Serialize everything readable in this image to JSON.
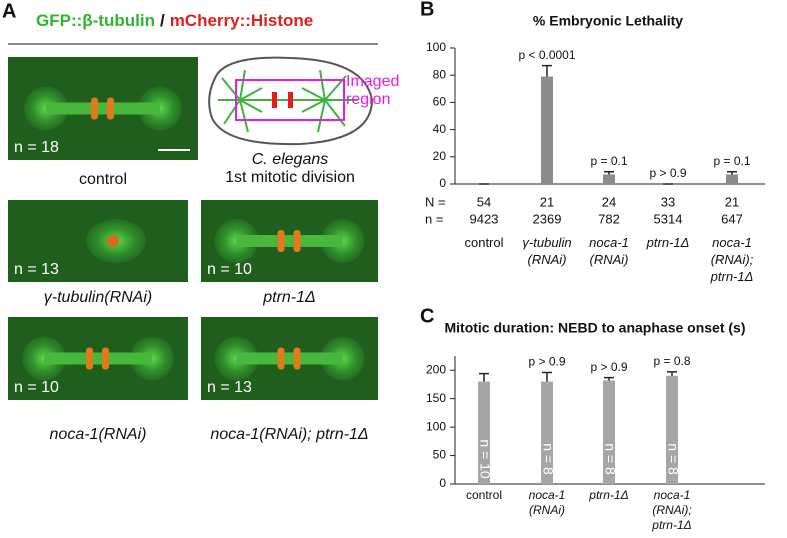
{
  "panel_a": {
    "label": "A",
    "header": {
      "part1": "GFP::β-tubulin",
      "separator": "/",
      "part2": "mCherry::Histone"
    },
    "images": [
      {
        "n": "n = 18",
        "caption": "control",
        "italic": false
      },
      {
        "n": "n = 13",
        "caption": "γ-tubulin(RNAi)",
        "italic": true
      },
      {
        "n": "n = 10",
        "caption": "ptrn-1Δ",
        "italic": true
      },
      {
        "n": "n = 10",
        "caption": "noca-1(RNAi)",
        "italic": true
      },
      {
        "n": "n = 13",
        "caption": "noca-1(RNAi); ptrn-1Δ",
        "italic": true
      }
    ],
    "diagram": {
      "region": "Imaged region",
      "species": "C. elegans",
      "stage": "1st mitotic division"
    }
  },
  "chart_data": [
    {
      "type": "bar",
      "label": "B",
      "title": "% Embryonic Lethality",
      "categories": [
        "control",
        "γ-tubulin (RNAi)",
        "noca-1 (RNAi)",
        "ptrn-1Δ",
        "noca-1 (RNAi); ptrn-1Δ"
      ],
      "category_italic": [
        false,
        true,
        true,
        true,
        true
      ],
      "values": [
        0,
        79,
        7,
        0,
        7
      ],
      "errors": [
        0,
        8,
        2,
        0,
        2
      ],
      "annotations": [
        null,
        "p < 0.0001",
        "p = 0.1",
        "p > 0.9",
        "p = 0.1"
      ],
      "count_rows": [
        {
          "label": "N =",
          "values": [
            54,
            21,
            24,
            33,
            21
          ]
        },
        {
          "label": "n =",
          "values": [
            9423,
            2369,
            782,
            5314,
            647
          ]
        }
      ],
      "color": "#8c8c8c",
      "ylim": [
        0,
        100
      ],
      "yticks": [
        0,
        20,
        40,
        60,
        80,
        100
      ]
    },
    {
      "type": "bar",
      "label": "C",
      "title": "Mitotic duration: NEBD to anaphase onset (s)",
      "categories": [
        "control",
        "noca-1 (RNAi)",
        "ptrn-1Δ",
        "noca-1 (RNAi); ptrn-1Δ"
      ],
      "category_italic": [
        false,
        true,
        true,
        true
      ],
      "values": [
        180,
        180,
        182,
        190
      ],
      "errors": [
        14,
        16,
        5,
        7
      ],
      "annotations": [
        null,
        "p > 0.9",
        "p > 0.9",
        "p = 0.8"
      ],
      "bar_labels": [
        "n = 10",
        "n = 8",
        "n = 8",
        "n = 8"
      ],
      "color": "#a6a6a6",
      "ylim": [
        0,
        225
      ],
      "yticks": [
        0,
        50,
        100,
        150,
        200
      ]
    }
  ]
}
